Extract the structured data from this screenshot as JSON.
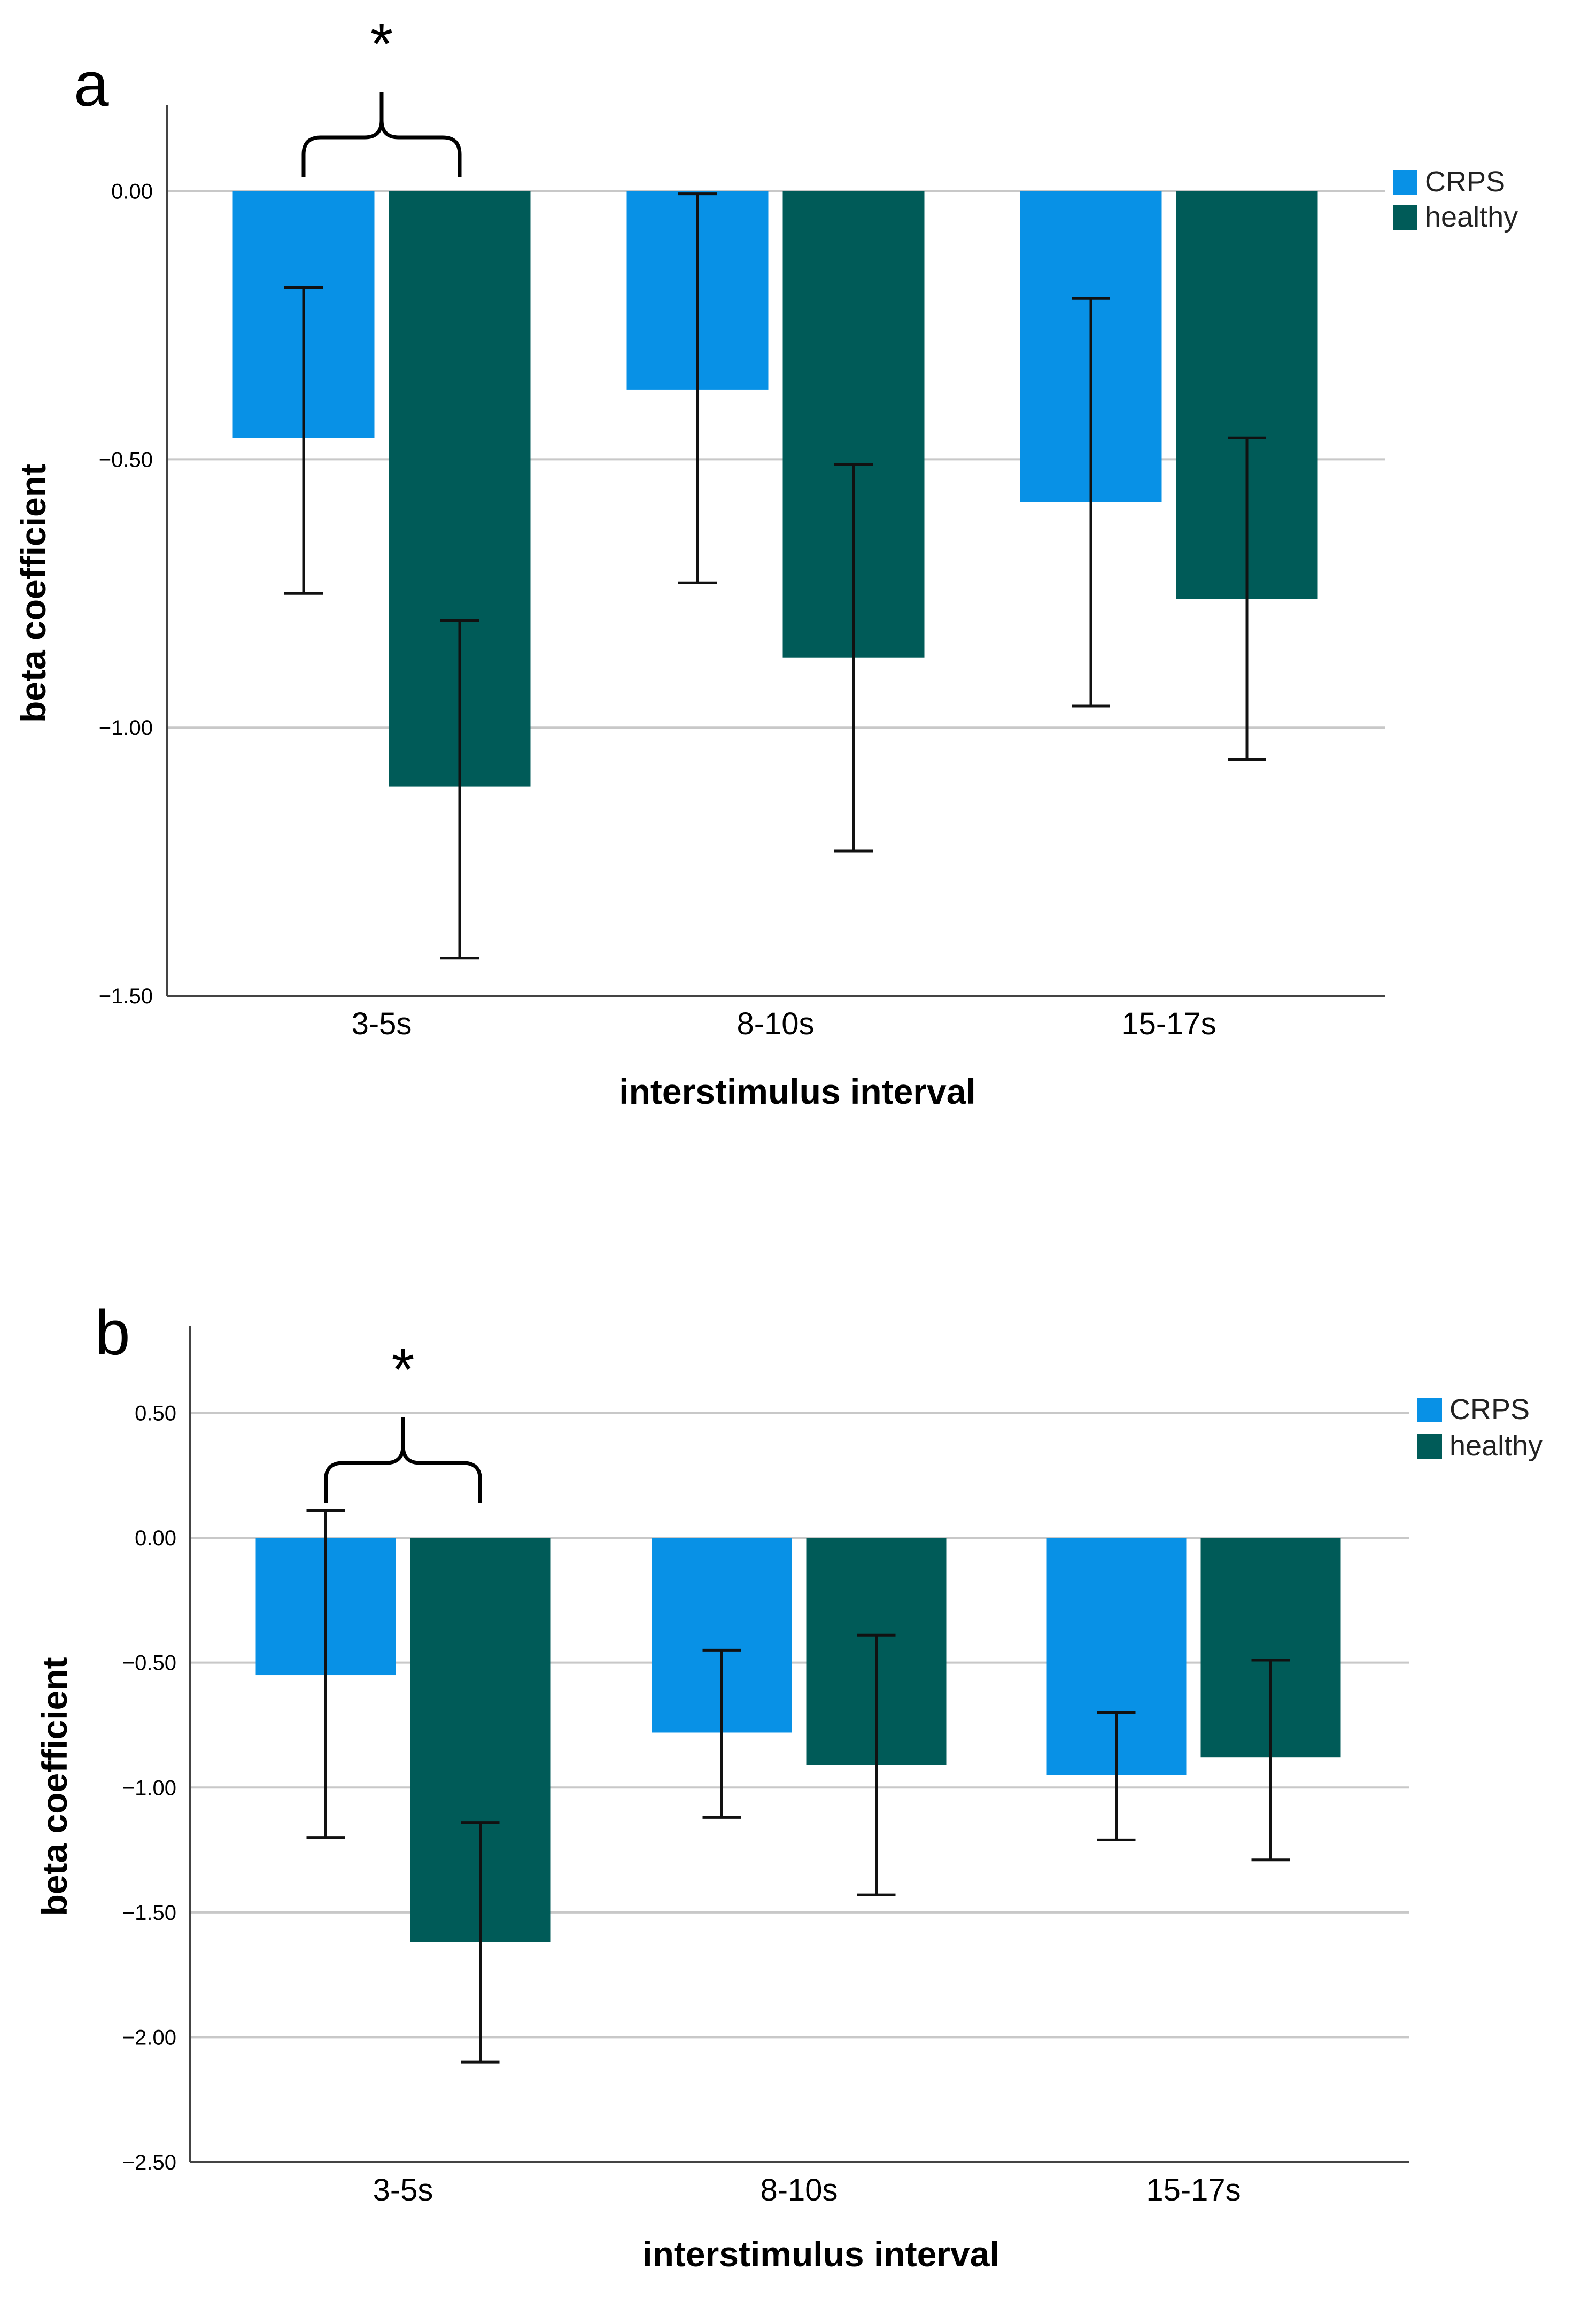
{
  "colors": {
    "crps": "#0891e6",
    "healthy": "#005b58",
    "grid": "#c8c8c8",
    "axis": "#444444",
    "text": "#000000"
  },
  "chart_data": [
    {
      "panel_label": "a",
      "type": "bar",
      "title": "",
      "xlabel": "interstimulus interval",
      "ylabel": "beta coefficient",
      "categories": [
        "3-5s",
        "8-10s",
        "15-17s"
      ],
      "ylim": [
        -1.5,
        0.16
      ],
      "yticks": [
        0.0,
        -0.5,
        -1.0,
        -1.5
      ],
      "ytick_labels": [
        "0.00",
        "-0.50",
        "-1.00",
        "-1.50"
      ],
      "legend_position": "top-right",
      "series": [
        {
          "name": "CRPS",
          "values": [
            -0.46,
            -0.37,
            -0.58
          ],
          "err_low": [
            -0.75,
            -0.73,
            -0.96
          ],
          "err_high": [
            -0.18,
            -0.005,
            -0.2
          ]
        },
        {
          "name": "healthy",
          "values": [
            -1.11,
            -0.87,
            -0.76
          ],
          "err_low": [
            -1.43,
            -1.23,
            -1.06
          ],
          "err_high": [
            -0.8,
            -0.51,
            -0.46
          ]
        }
      ],
      "annotation": {
        "text": "*",
        "category": "3-5s"
      }
    },
    {
      "panel_label": "b",
      "type": "bar",
      "title": "",
      "xlabel": "interstimulus interval",
      "ylabel": "beta coefficient",
      "categories": [
        "3-5s",
        "8-10s",
        "15-17s"
      ],
      "ylim": [
        -2.5,
        0.85
      ],
      "yticks": [
        0.5,
        0.0,
        -0.5,
        -1.0,
        -1.5,
        -2.0,
        -2.5
      ],
      "ytick_labels": [
        "0.50",
        "0.00",
        "-0.50",
        "-1.00",
        "-1.50",
        "-2.00",
        "-2.50"
      ],
      "legend_position": "top-right",
      "series": [
        {
          "name": "CRPS",
          "values": [
            -0.55,
            -0.78,
            -0.95
          ],
          "err_low": [
            -1.2,
            -1.12,
            -1.21
          ],
          "err_high": [
            0.11,
            -0.45,
            -0.7
          ]
        },
        {
          "name": "healthy",
          "values": [
            -1.62,
            -0.91,
            -0.88
          ],
          "err_low": [
            -2.1,
            -1.43,
            -1.29
          ],
          "err_high": [
            -1.14,
            -0.39,
            -0.49
          ]
        }
      ],
      "annotation": {
        "text": "*",
        "category": "3-5s"
      }
    }
  ]
}
